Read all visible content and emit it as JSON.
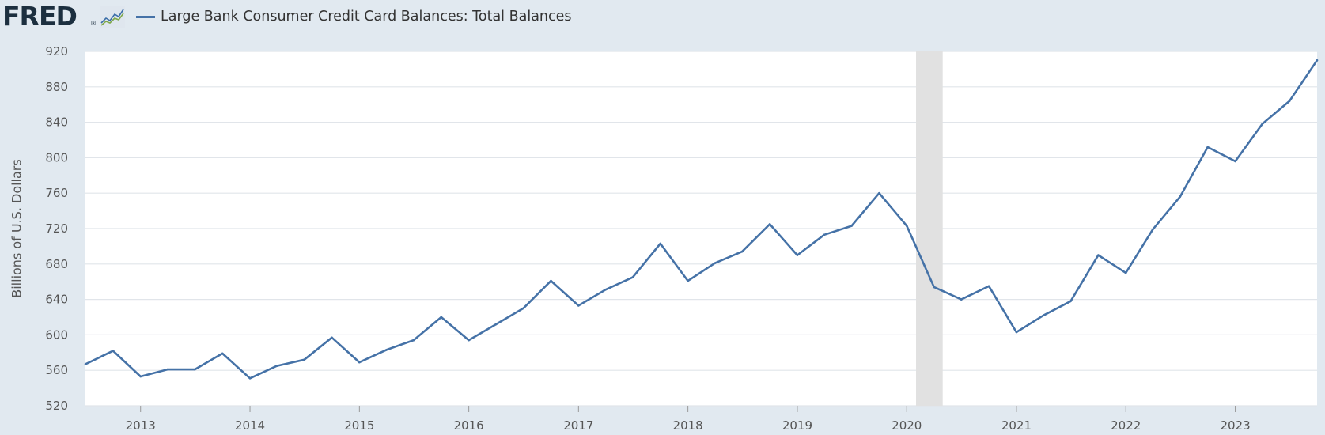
{
  "header": {
    "logo_text": "FRED",
    "logo_mark": "®",
    "series_title": "Large Bank Consumer Credit Card Balances: Total Balances",
    "graph_icon": "fred-graph-icon"
  },
  "colors": {
    "background": "#e1e9f0",
    "plot_background": "#ffffff",
    "series": "#4572a7",
    "recession": "#e1e1e1",
    "grid": "#e1e5ea"
  },
  "chart_data": {
    "type": "line",
    "title": "",
    "xlabel": "",
    "ylabel": "Billions of U.S. Dollars",
    "ylim": [
      520,
      920
    ],
    "yticks": [
      520,
      560,
      600,
      640,
      680,
      720,
      760,
      800,
      840,
      880,
      920
    ],
    "xlim": [
      "2012-07-01",
      "2023-10-01"
    ],
    "xticks": [
      "2013",
      "2014",
      "2015",
      "2016",
      "2017",
      "2018",
      "2019",
      "2020",
      "2021",
      "2022",
      "2023"
    ],
    "grid": true,
    "recessions": [
      {
        "start": "2020-02-01",
        "end": "2020-04-30"
      }
    ],
    "series": [
      {
        "name": "Large Bank Consumer Credit Card Balances: Total Balances",
        "x": [
          "2012-07-01",
          "2012-10-01",
          "2013-01-01",
          "2013-04-01",
          "2013-07-01",
          "2013-10-01",
          "2014-01-01",
          "2014-04-01",
          "2014-07-01",
          "2014-10-01",
          "2015-01-01",
          "2015-04-01",
          "2015-07-01",
          "2015-10-01",
          "2016-01-01",
          "2016-04-01",
          "2016-07-01",
          "2016-10-01",
          "2017-01-01",
          "2017-04-01",
          "2017-07-01",
          "2017-10-01",
          "2018-01-01",
          "2018-04-01",
          "2018-07-01",
          "2018-10-01",
          "2019-01-01",
          "2019-04-01",
          "2019-07-01",
          "2019-10-01",
          "2020-01-01",
          "2020-04-01",
          "2020-07-01",
          "2020-10-01",
          "2021-01-01",
          "2021-04-01",
          "2021-07-01",
          "2021-10-01",
          "2022-01-01",
          "2022-04-01",
          "2022-07-01",
          "2022-10-01",
          "2023-01-01",
          "2023-04-01",
          "2023-07-01",
          "2023-10-01"
        ],
        "values": [
          567,
          582,
          553,
          561,
          561,
          579,
          551,
          565,
          572,
          597,
          569,
          583,
          594,
          620,
          594,
          612,
          630,
          661,
          633,
          651,
          665,
          703,
          661,
          681,
          694,
          725,
          690,
          713,
          723,
          760,
          723,
          654,
          640,
          655,
          603,
          622,
          638,
          690,
          670,
          719,
          756,
          812,
          796,
          838,
          864,
          910
        ]
      }
    ]
  }
}
